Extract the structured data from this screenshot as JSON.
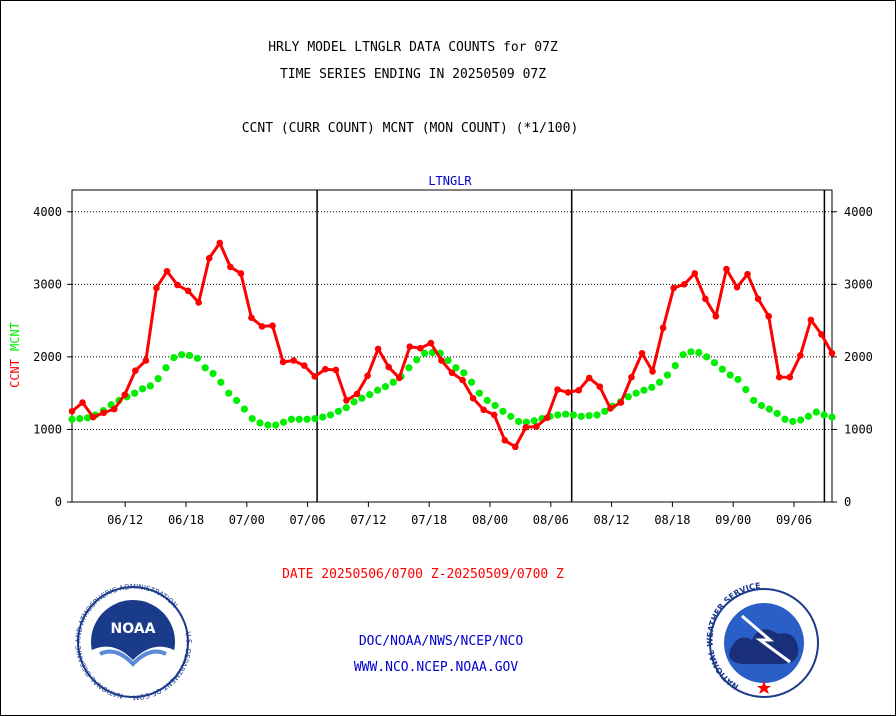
{
  "header": {
    "line1": "HRLY MODEL LTNGLR DATA COUNTS for 07Z",
    "line2": "TIME SERIES ENDING IN 20250509 07Z",
    "line3": "CCNT (CURR COUNT) MCNT (MON COUNT) (*1/100)"
  },
  "footer": {
    "date_range": "DATE 20250506/0700 Z-20250509/0700 Z",
    "org_path": "DOC/NOAA/NWS/NCEP/NCO",
    "website": "WWW.NCO.NCEP.NOAA.GOV"
  },
  "logos": {
    "noaa_text": "NOAA",
    "noaa_ring": "NATIONAL OCEANIC AND ATMOSPHERIC ADMINISTRATION",
    "noaa_ring_bottom": "U.S. DEPARTMENT OF COMMERCE",
    "nws_ring": "NATIONAL WEATHER SERVICE"
  },
  "colors": {
    "ccnt": "#ff0000",
    "mcnt": "#00ee00",
    "text": "#000000",
    "accent": "#0000cc",
    "grid": "#000000"
  },
  "chart_data": {
    "type": "line",
    "title": "LTNGLR",
    "ylabel_series": [
      {
        "text": "CCNT",
        "color": "#ff0000"
      },
      {
        "text": "MCNT",
        "color": "#00ee00"
      }
    ],
    "xlabel": "",
    "ylim": [
      0,
      4300
    ],
    "yticks": [
      0,
      1000,
      2000,
      3000,
      4000
    ],
    "ytick_labels": [
      "0",
      "1000",
      "2000",
      "3000",
      "4000"
    ],
    "xlim": [
      0,
      100
    ],
    "xticks": [
      {
        "pos": 7,
        "label": "06/12"
      },
      {
        "pos": 15,
        "label": "06/18"
      },
      {
        "pos": 23,
        "label": "07/00"
      },
      {
        "pos": 31,
        "label": "07/06"
      },
      {
        "pos": 39,
        "label": "07/12"
      },
      {
        "pos": 47,
        "label": "07/18"
      },
      {
        "pos": 55,
        "label": "08/00"
      },
      {
        "pos": 63,
        "label": "08/06"
      },
      {
        "pos": 71,
        "label": "08/12"
      },
      {
        "pos": 79,
        "label": "08/18"
      },
      {
        "pos": 87,
        "label": "09/00"
      },
      {
        "pos": 95,
        "label": "09/06"
      }
    ],
    "day_lines": [
      32.25,
      65.75,
      99
    ],
    "grid": true,
    "series": [
      {
        "name": "CCNT",
        "color": "#ff0000",
        "values": [
          1250,
          1370,
          1170,
          1230,
          1280,
          1480,
          1810,
          1950,
          2950,
          3180,
          2990,
          2910,
          2750,
          3360,
          3570,
          3240,
          3150,
          2540,
          2420,
          2430,
          1930,
          1950,
          1880,
          1730,
          1830,
          1820,
          1400,
          1490,
          1740,
          2110,
          1860,
          1710,
          2140,
          2120,
          2190,
          1950,
          1780,
          1680,
          1430,
          1270,
          1200,
          850,
          760,
          1030,
          1040,
          1160,
          1550,
          1510,
          1540,
          1710,
          1590,
          1290,
          1370,
          1720,
          2050,
          1800,
          2400,
          2950,
          3000,
          3150,
          2800,
          2560,
          3210,
          2960,
          3140,
          2800,
          2560,
          1720,
          1720,
          2020,
          2510,
          2310,
          2050
        ]
      },
      {
        "name": "MCNT",
        "color": "#00ee00",
        "values": [
          1140,
          1150,
          1160,
          1200,
          1260,
          1340,
          1400,
          1450,
          1500,
          1560,
          1600,
          1700,
          1850,
          1990,
          2030,
          2020,
          1980,
          1850,
          1770,
          1650,
          1500,
          1400,
          1280,
          1150,
          1090,
          1060,
          1060,
          1100,
          1140,
          1140,
          1140,
          1150,
          1170,
          1200,
          1250,
          1300,
          1380,
          1430,
          1480,
          1540,
          1590,
          1650,
          1730,
          1850,
          1960,
          2050,
          2060,
          2050,
          1950,
          1850,
          1780,
          1650,
          1500,
          1400,
          1330,
          1250,
          1180,
          1110,
          1100,
          1120,
          1150,
          1180,
          1200,
          1210,
          1200,
          1180,
          1190,
          1200,
          1250,
          1320,
          1380,
          1450,
          1500,
          1540,
          1580,
          1650,
          1750,
          1880,
          2030,
          2070,
          2060,
          2000,
          1920,
          1830,
          1750,
          1690,
          1550,
          1400,
          1330,
          1280,
          1220,
          1140,
          1110,
          1130,
          1180,
          1240,
          1200,
          1170
        ]
      }
    ]
  }
}
